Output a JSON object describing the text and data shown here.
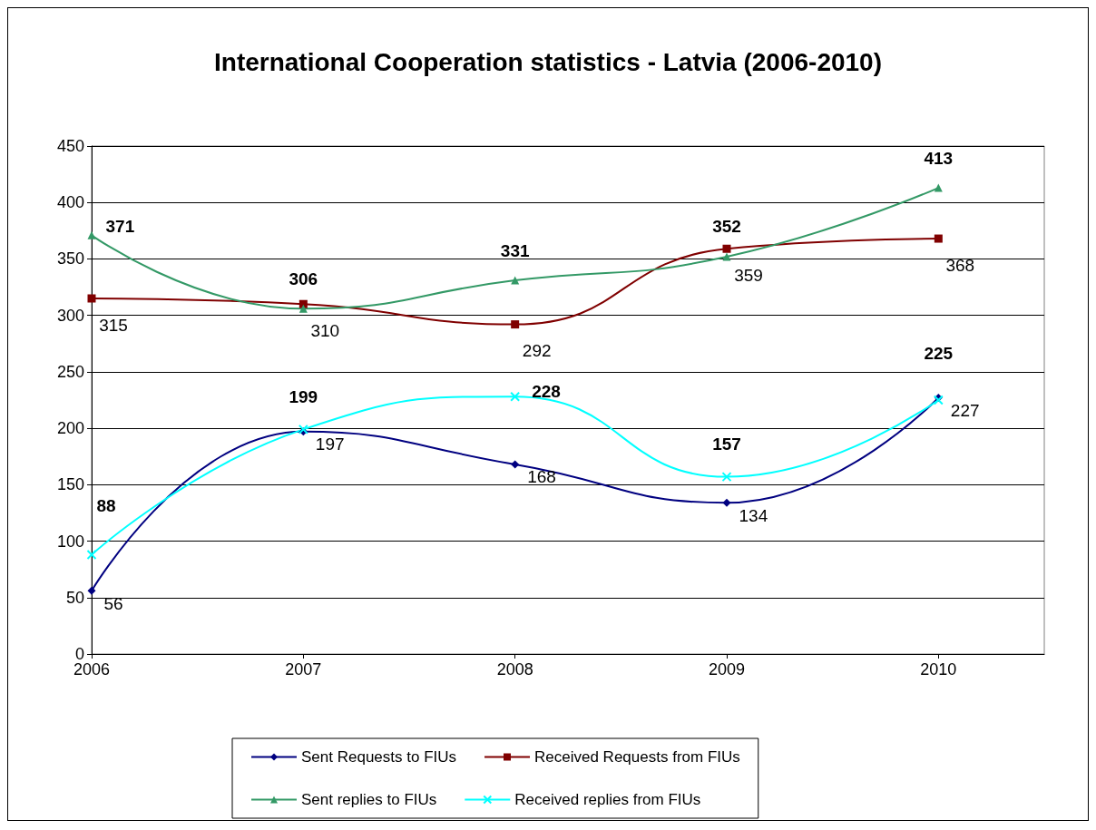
{
  "chart_data": {
    "type": "line",
    "title": "International Cooperation statistics - Latvia (2006-2010)",
    "x": [
      2006,
      2007,
      2008,
      2009,
      2010
    ],
    "xlim": [
      2006,
      2010.5
    ],
    "xticks": [
      2006,
      2007,
      2008,
      2009,
      2010
    ],
    "ylim": [
      0,
      450
    ],
    "yticks": [
      0,
      50,
      100,
      150,
      200,
      250,
      300,
      350,
      400,
      450
    ],
    "series": [
      {
        "name": "Sent Requests to FIUs",
        "color": "#000080",
        "marker": "diamond",
        "values": [
          56,
          197,
          168,
          134,
          227
        ]
      },
      {
        "name": "Received Requests from FIUs",
        "color": "#800000",
        "marker": "square",
        "values": [
          315,
          310,
          292,
          359,
          368
        ]
      },
      {
        "name": "Sent replies to FIUs",
        "color": "#339966",
        "marker": "triangle",
        "values": [
          371,
          306,
          331,
          352,
          413
        ]
      },
      {
        "name": "Received replies from FIUs",
        "color": "#00ffff",
        "marker": "cross",
        "values": [
          88,
          199,
          228,
          157,
          225
        ]
      }
    ],
    "data_labels": true,
    "grid": "y",
    "legend": "bottom",
    "line_style": "solid"
  }
}
